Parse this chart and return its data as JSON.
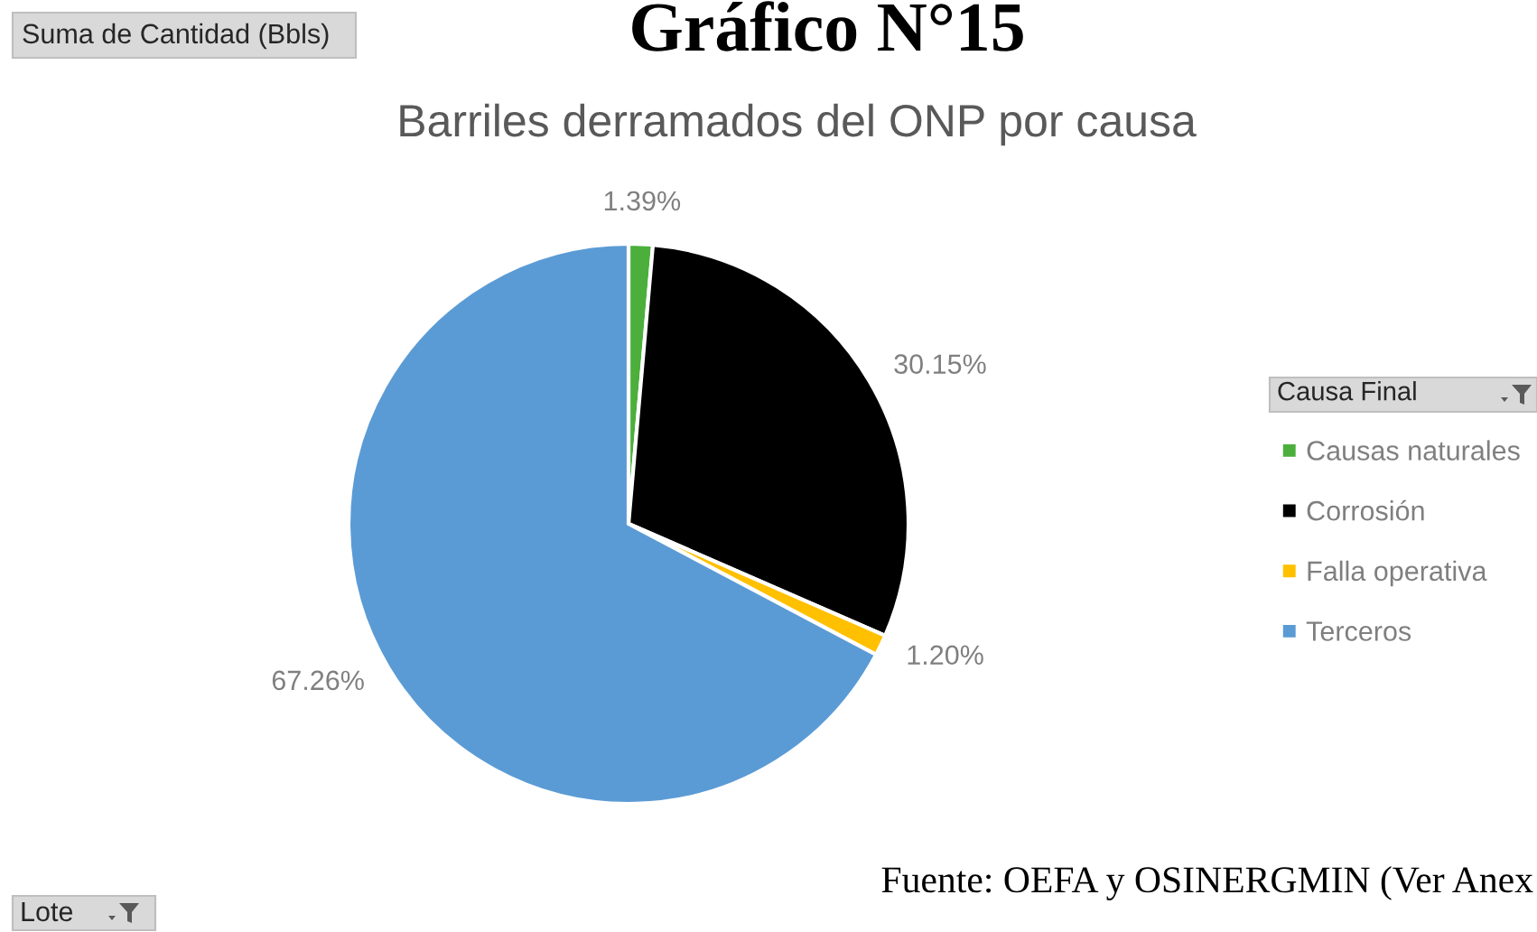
{
  "chart_data": {
    "type": "pie",
    "title": "Gráfico N°15",
    "subtitle": "Barriles derramados del ONP por causa",
    "categories": [
      "Causas naturales",
      "Corrosión",
      "Falla operativa",
      "Terceros"
    ],
    "values": [
      1.39,
      30.15,
      1.2,
      67.26
    ],
    "value_labels": [
      "1.39%",
      "30.15%",
      "1.20%",
      "67.26%"
    ],
    "colors": [
      "#4caf3c",
      "#000000",
      "#ffc000",
      "#5b9bd5"
    ],
    "legend": "right",
    "legend_title": "Causa Final",
    "annotations": [
      "Suma de Cantidad (Bbls)",
      "Lote",
      "Fuente: OEFA y OSINERGMIN (Ver Anex"
    ]
  }
}
